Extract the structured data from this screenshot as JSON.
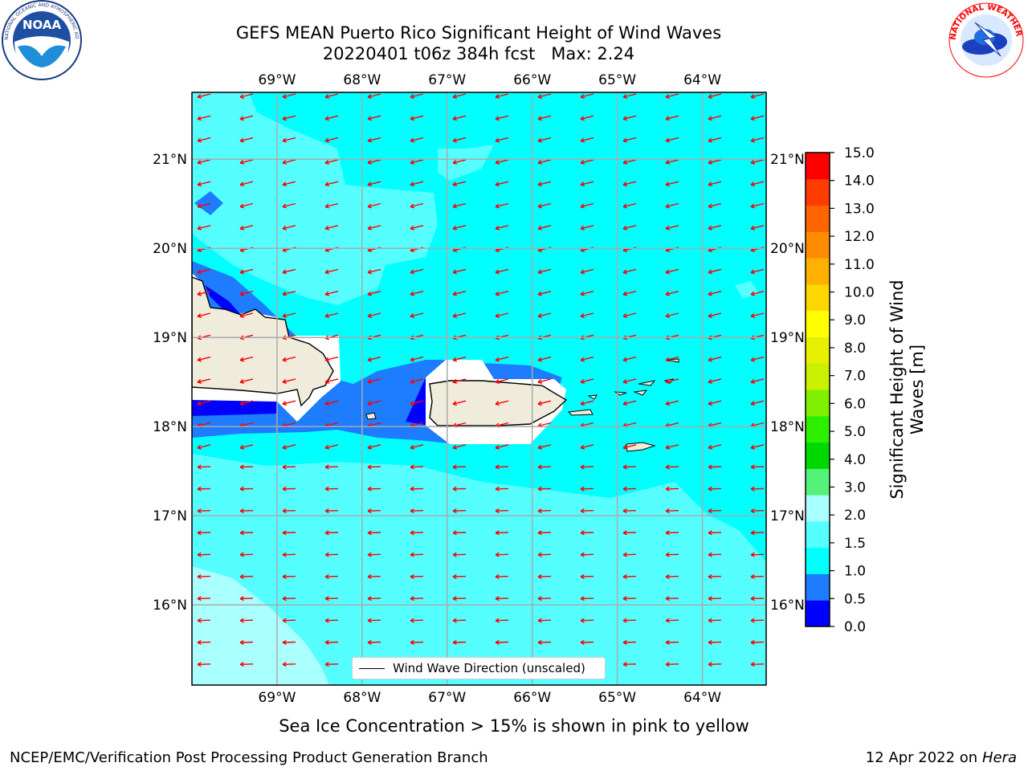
{
  "title": {
    "line1": "GEFS MEAN Puerto Rico Significant Height of Wind Waves",
    "line2": "20220401 t06z 384h fcst   Max: 2.24"
  },
  "logos": {
    "left": {
      "name": "noaa-logo",
      "text": "NOAA",
      "ring_text": "NATIONAL OCEANIC AND ATMOSPHERIC ADMINISTRATION · U.S. DEPARTMENT OF COMMERCE"
    },
    "right": {
      "name": "nws-logo",
      "ring_text": "NATIONAL WEATHER SERVICE"
    }
  },
  "map": {
    "lon_labels": [
      "69°W",
      "68°W",
      "67°W",
      "66°W",
      "65°W",
      "64°W"
    ],
    "lat_labels": [
      "21°N",
      "20°N",
      "19°N",
      "18°N",
      "17°N",
      "16°N"
    ],
    "lon_values": [
      -69,
      -68,
      -67,
      -66,
      -65,
      -64
    ],
    "lat_values": [
      21,
      20,
      19,
      18,
      17,
      16
    ],
    "extent": {
      "lon_min": -70,
      "lon_max": -63.25,
      "lat_min": 15.1,
      "lat_max": 21.75
    },
    "arrow_color": "#ff0000",
    "gridline_color": "#aaaaaa",
    "land_color": "#efecdc",
    "ice_mask_color": "#ffffff"
  },
  "legend": {
    "label": "Wind Wave Direction (unscaled)"
  },
  "colorbar": {
    "label": "Significant Height of Wind Waves [m]",
    "ticks": [
      "15.0",
      "14.0",
      "13.0",
      "12.0",
      "11.0",
      "10.0",
      "9.0",
      "8.0",
      "7.0",
      "6.0",
      "5.0",
      "4.0",
      "3.0",
      "2.0",
      "1.5",
      "1.0",
      "0.5",
      "0.0"
    ],
    "colors": [
      "#0000ff",
      "#1e7cff",
      "#00ffff",
      "#55ffff",
      "#aaffff",
      "#55f27a",
      "#00d800",
      "#2df000",
      "#80f000",
      "#c8f000",
      "#e6f000",
      "#ffff00",
      "#ffd700",
      "#ffb000",
      "#ff8c00",
      "#ff6400",
      "#ff3c00",
      "#ff0000"
    ]
  },
  "footer": {
    "note": "Sea Ice Concentration > 15% is shown in pink to yellow",
    "credit": "NCEP/EMC/Verification Post Processing Product Generation Branch",
    "date": "12 Apr 2022 on ",
    "machine": "Hera"
  }
}
